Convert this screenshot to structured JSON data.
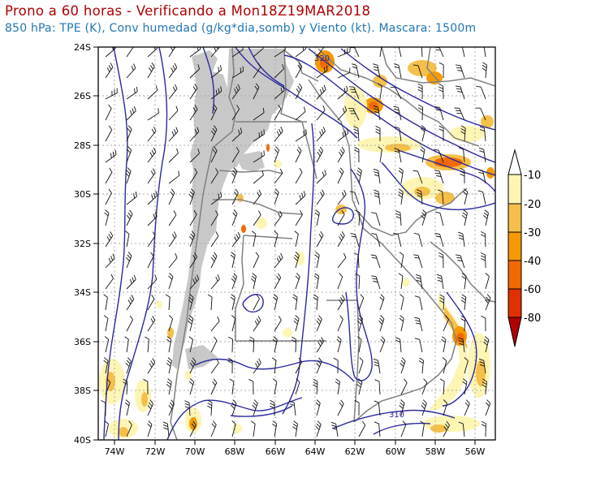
{
  "header": {
    "title": "Prono a 60 horas - Verificando a Mon18Z19MAR2018",
    "subtitle": "850 hPa: TPE (K), Conv humedad (g/kg*dia,somb) y Viento (kt). Mascara: 1500m"
  },
  "map": {
    "lat_labels": [
      "24S",
      "26S",
      "28S",
      "30S",
      "32S",
      "34S",
      "36S",
      "38S",
      "40S"
    ],
    "lon_labels": [
      "74W",
      "72W",
      "70W",
      "68W",
      "66W",
      "64W",
      "62W",
      "60W",
      "58W",
      "56W"
    ],
    "contour_labels": [
      "320",
      "310"
    ]
  },
  "legend": {
    "levels": [
      "-10",
      "-20",
      "-30",
      "-40",
      "-60",
      "-80"
    ],
    "colors": [
      "#fdf5b4",
      "#f5c04a",
      "#f59a00",
      "#f06a00",
      "#e03000",
      "#b00000"
    ]
  },
  "colors": {
    "title": "#b00000",
    "subtitle": "#1f77b4",
    "mask": "#c8c8c8",
    "contour": "#2a2a9c",
    "boundary": "#808080"
  }
}
